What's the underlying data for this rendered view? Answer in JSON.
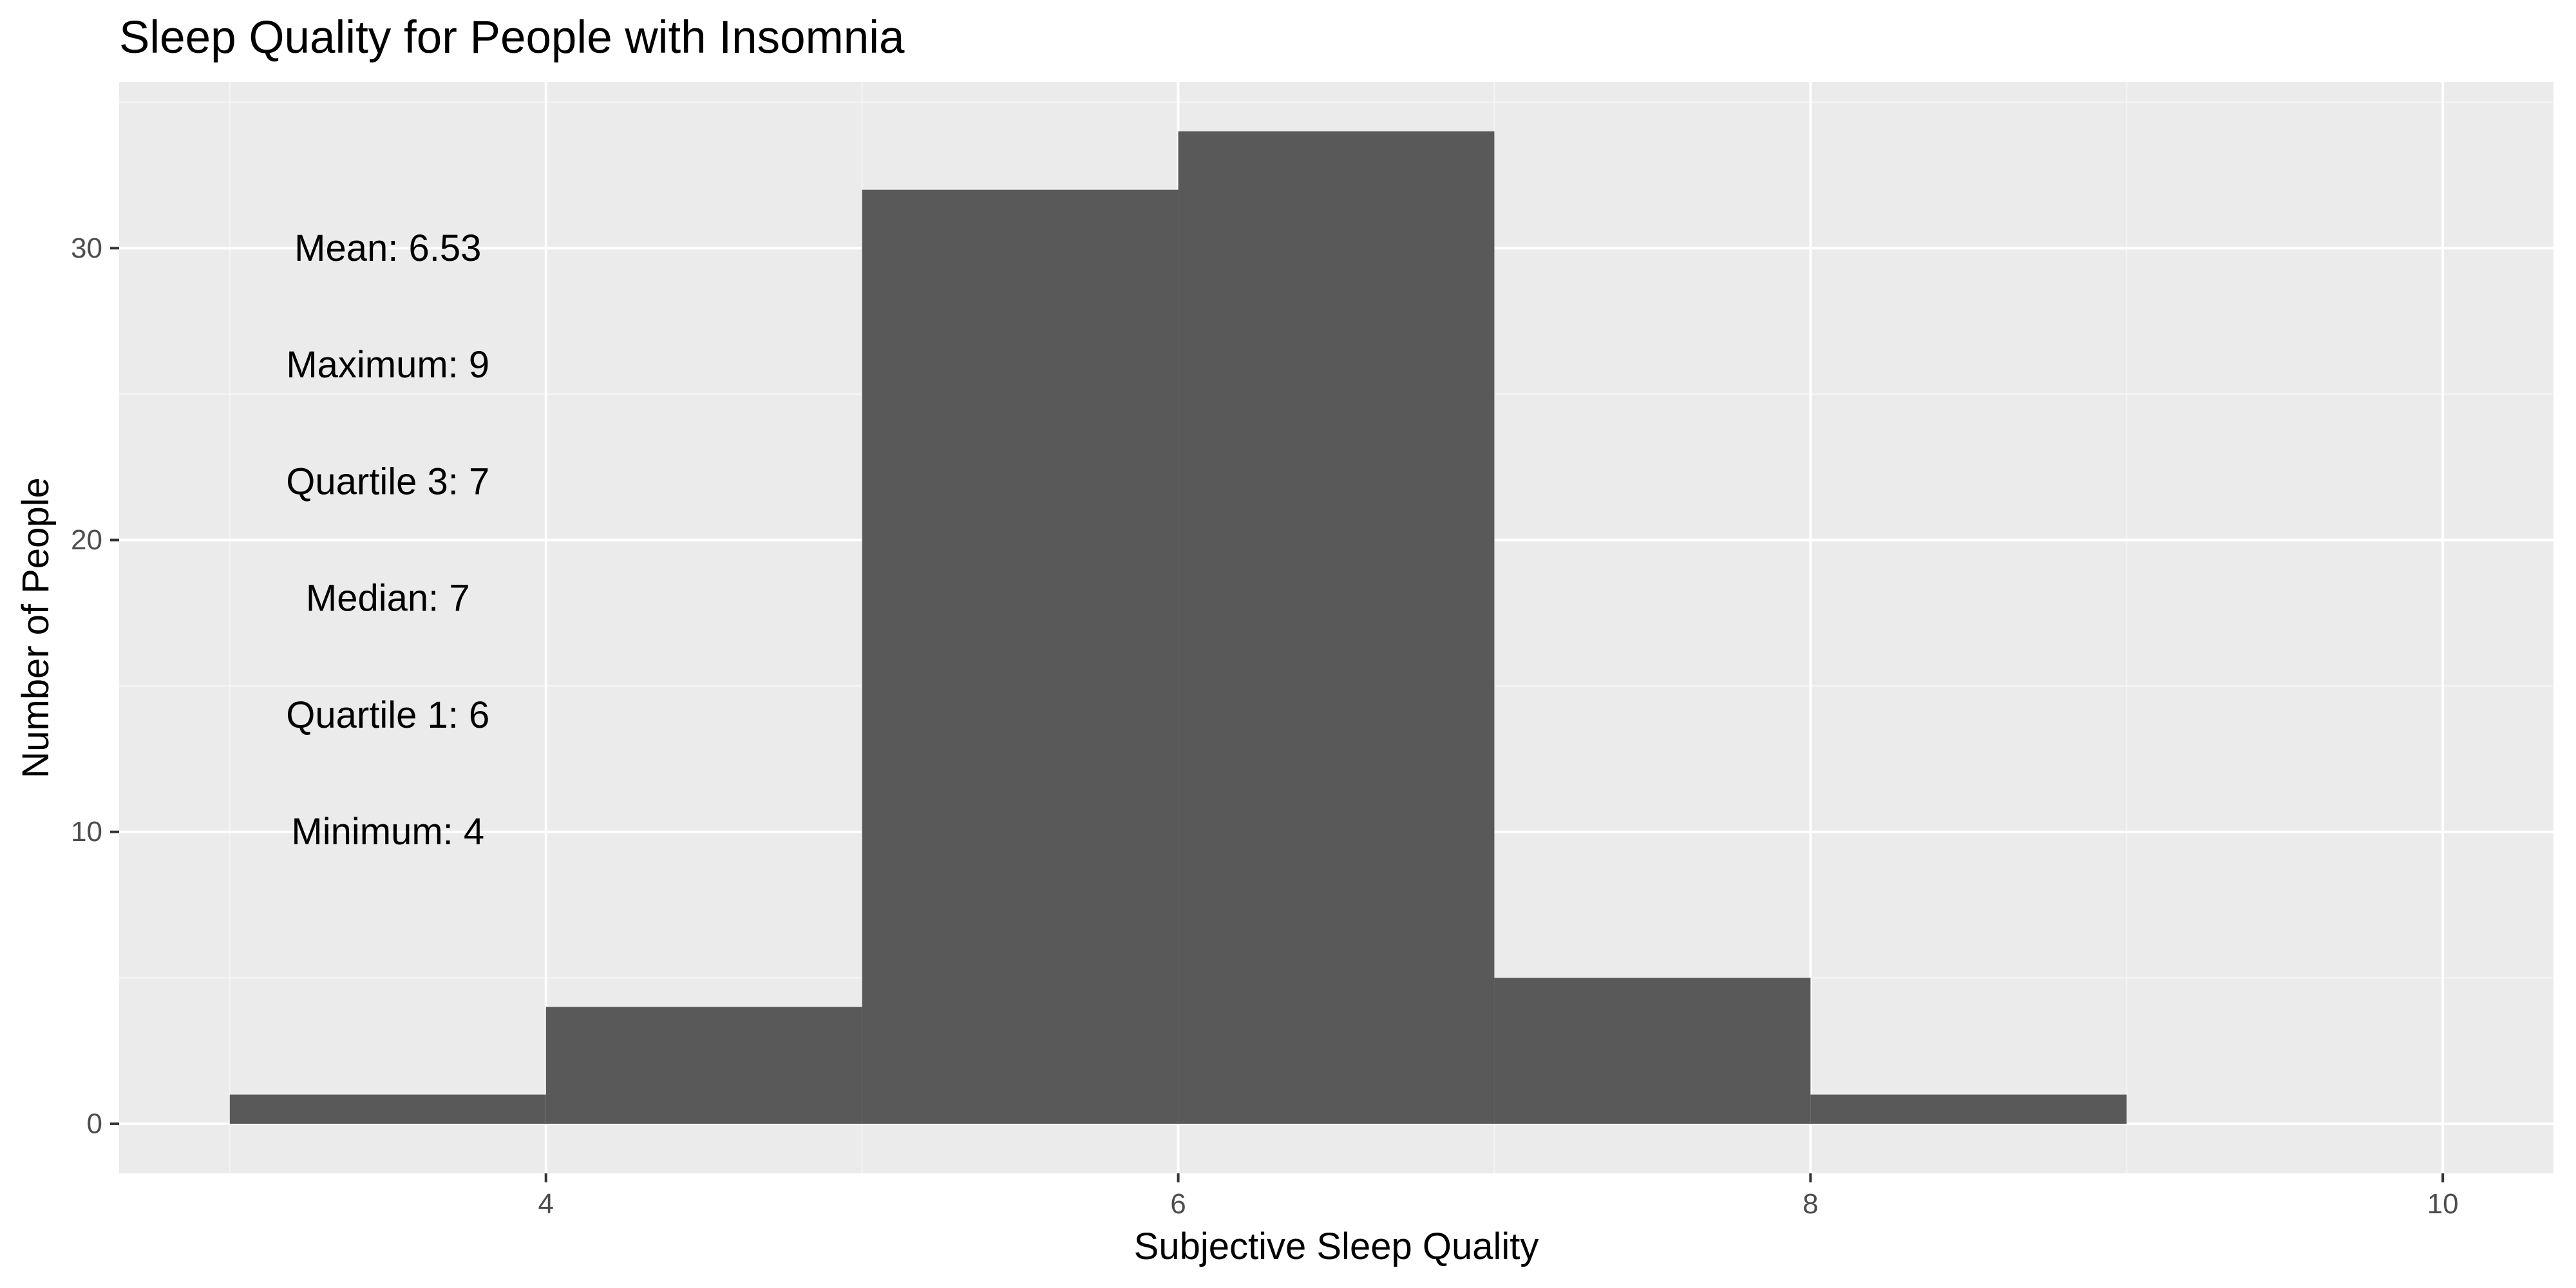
{
  "chart_data": {
    "type": "bar",
    "title": "Sleep Quality for People with Insomnia",
    "xlabel": "Subjective Sleep Quality",
    "ylabel": "Number of People",
    "xlim": [
      2.65,
      10.35
    ],
    "ylim": [
      -1.7,
      35.7
    ],
    "x_ticks": [
      4,
      6,
      8,
      10
    ],
    "y_ticks": [
      0,
      10,
      20,
      30
    ],
    "grid": true,
    "bins": [
      {
        "x0": 3,
        "x1": 4,
        "count": 1
      },
      {
        "x0": 4,
        "x1": 5,
        "count": 4
      },
      {
        "x0": 5,
        "x1": 6,
        "count": 32
      },
      {
        "x0": 6,
        "x1": 7,
        "count": 34
      },
      {
        "x0": 7,
        "x1": 8,
        "count": 5
      },
      {
        "x0": 8,
        "x1": 9,
        "count": 1
      }
    ],
    "annotations": [
      {
        "label": "Mean: 6.53",
        "x": 3.5,
        "y": 30
      },
      {
        "label": "Maximum: 9",
        "x": 3.5,
        "y": 26
      },
      {
        "label": "Quartile 3: 7",
        "x": 3.5,
        "y": 22
      },
      {
        "label": "Median: 7",
        "x": 3.5,
        "y": 18
      },
      {
        "label": "Quartile 1: 6",
        "x": 3.5,
        "y": 14
      },
      {
        "label": "Minimum: 4",
        "x": 3.5,
        "y": 10
      }
    ],
    "colors": {
      "panel_background": "#ebebeb",
      "grid_major": "#ffffff",
      "grid_minor": "#f5f5f5",
      "bar_fill": "#595959",
      "tick_label": "#4d4d4d",
      "tick_mark": "#333333",
      "text": "#000000"
    }
  }
}
